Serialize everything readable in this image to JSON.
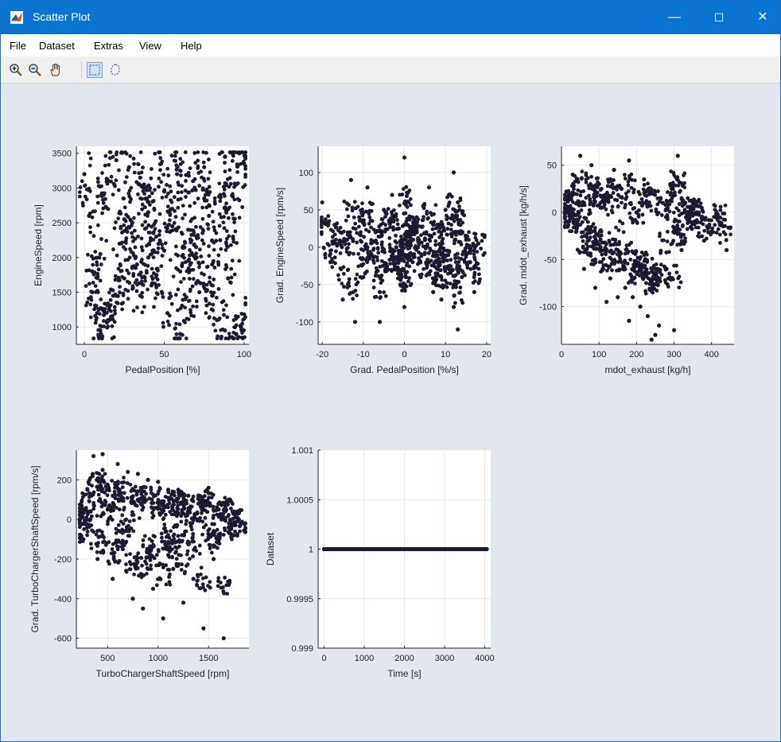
{
  "window": {
    "title": "Scatter Plot",
    "app_icon": "matlab-icon",
    "controls": {
      "minimize": "—",
      "maximize": "☐",
      "close": "✕"
    }
  },
  "menubar": {
    "items": [
      {
        "label": "File"
      },
      {
        "label": "Dataset"
      },
      {
        "label": "Extras"
      },
      {
        "label": "View"
      },
      {
        "label": "Help"
      }
    ]
  },
  "toolbar": {
    "tools": [
      {
        "icon": "zoom-in-icon"
      },
      {
        "icon": "zoom-out-icon"
      },
      {
        "icon": "pan-hand-icon"
      },
      {
        "icon": "rectangle-select-icon",
        "active": true
      },
      {
        "icon": "lasso-select-icon"
      }
    ]
  },
  "colors": {
    "marker": "#1b1a30",
    "figure_bg": "#e1e6ef",
    "axes_bg": "#ffffff",
    "title_bar": "#0b73d0",
    "grid": "#e8e8e8"
  },
  "chart_data": [
    {
      "type": "scatter",
      "xlabel": "PedalPosition [%]",
      "ylabel": "EngineSpeed [rpm]",
      "xlim": [
        -5,
        103
      ],
      "ylim": [
        750,
        3600
      ],
      "xticks": [
        0,
        50,
        100
      ],
      "yticks": [
        1000,
        1500,
        2000,
        2500,
        3000,
        3500
      ],
      "grid": true,
      "x": [
        0,
        3,
        5,
        8,
        10,
        12,
        15,
        18,
        20,
        22,
        25,
        28,
        30,
        33,
        35,
        38,
        40,
        42,
        45,
        48,
        50,
        52,
        55,
        58,
        60,
        63,
        65,
        68,
        70,
        72,
        75,
        78,
        80,
        83,
        85,
        88,
        90,
        93,
        95,
        98,
        100,
        10,
        20,
        30,
        40,
        50,
        60,
        70,
        80,
        90,
        95,
        15,
        25,
        35,
        45,
        55,
        65,
        75,
        85,
        97,
        5,
        40,
        60,
        88
      ],
      "y": [
        3200,
        2600,
        1800,
        1200,
        950,
        2900,
        3100,
        1450,
        3400,
        2200,
        1700,
        3300,
        2500,
        1900,
        1450,
        3000,
        2800,
        1600,
        2300,
        3350,
        2100,
        1200,
        2700,
        3200,
        1800,
        1400,
        2400,
        3100,
        2000,
        1500,
        3300,
        2600,
        1900,
        1100,
        2900,
        3450,
        1700,
        2300,
        3050,
        1000,
        3350,
        2050,
        1450,
        1850,
        2650,
        2950,
        3250,
        2150,
        1450,
        2700,
        900,
        1100,
        2550,
        3150,
        1750,
        2450,
        1950,
        2850,
        2250,
        3500,
        1500,
        2000,
        900,
        950
      ]
    },
    {
      "type": "scatter",
      "xlabel": "Grad. PedalPosition [%/s]",
      "ylabel": "Grad. EngineSpeed [rpm/s]",
      "xlim": [
        -21,
        21
      ],
      "ylim": [
        -130,
        135
      ],
      "xticks": [
        -20,
        -10,
        0,
        10,
        20
      ],
      "yticks": [
        -100,
        -50,
        0,
        50,
        100
      ],
      "grid": true,
      "x": [
        -20,
        -18,
        -17,
        -15,
        -14,
        -12,
        -11,
        -10,
        -9,
        -8,
        -7,
        -6,
        -5,
        -4,
        -3,
        -2,
        -1,
        0,
        0,
        0,
        0,
        1,
        2,
        3,
        4,
        5,
        6,
        7,
        8,
        9,
        10,
        11,
        12,
        12,
        12,
        13,
        14,
        15,
        16,
        17,
        18,
        -13,
        -6,
        0,
        6,
        13,
        2,
        -2,
        -9,
        9
      ],
      "y": [
        60,
        -20,
        30,
        -70,
        10,
        -100,
        40,
        -40,
        80,
        -10,
        20,
        -60,
        50,
        -30,
        70,
        0,
        -50,
        120,
        30,
        -80,
        -10,
        60,
        -20,
        40,
        -40,
        10,
        80,
        -60,
        30,
        -10,
        50,
        -30,
        -80,
        20,
        100,
        60,
        -40,
        10,
        -20,
        -60,
        5,
        90,
        -100,
        10,
        -20,
        -110,
        40,
        -30,
        0,
        -70
      ]
    },
    {
      "type": "scatter",
      "xlabel": "mdot_exhaust [kg/h]",
      "ylabel": "Grad. mdot_exhaust [kg/h/s]",
      "xlim": [
        0,
        460
      ],
      "ylim": [
        -140,
        70
      ],
      "xticks": [
        0,
        100,
        200,
        300,
        400
      ],
      "yticks": [
        -100,
        -50,
        0,
        50
      ],
      "grid": true,
      "x": [
        10,
        15,
        20,
        25,
        30,
        40,
        50,
        60,
        70,
        80,
        90,
        100,
        110,
        120,
        130,
        140,
        150,
        160,
        170,
        180,
        190,
        200,
        210,
        220,
        230,
        240,
        250,
        260,
        270,
        280,
        290,
        300,
        310,
        320,
        330,
        340,
        350,
        360,
        380,
        400,
        420,
        440,
        60,
        120,
        180,
        240,
        300,
        90,
        150,
        210
      ],
      "y": [
        5,
        -10,
        20,
        -5,
        40,
        -20,
        60,
        10,
        -30,
        50,
        -50,
        30,
        -60,
        15,
        -70,
        45,
        -40,
        25,
        -80,
        55,
        -90,
        0,
        -100,
        35,
        -110,
        20,
        -130,
        -120,
        10,
        -60,
        30,
        -20,
        60,
        -40,
        10,
        -10,
        5,
        0,
        -30,
        -20,
        -5,
        -40,
        -60,
        -95,
        -115,
        -135,
        -125,
        -80,
        -90,
        -100
      ]
    },
    {
      "type": "scatter",
      "xlabel": "TurboChargerShaftSpeed [rpm]",
      "ylabel": "Grad. TurboChargerShaftSpeed [rpm/s]",
      "xlim": [
        190,
        1900
      ],
      "ylim": [
        -650,
        350
      ],
      "xticks": [
        500,
        1000,
        1500
      ],
      "yticks": [
        -600,
        -400,
        -200,
        0,
        200
      ],
      "grid": true,
      "x": [
        230,
        260,
        300,
        330,
        360,
        400,
        450,
        500,
        550,
        600,
        650,
        700,
        750,
        800,
        850,
        900,
        950,
        1000,
        1050,
        1100,
        1150,
        1200,
        1250,
        1300,
        1350,
        1400,
        1450,
        1500,
        1550,
        1600,
        1650,
        1700,
        1750,
        1800,
        1820,
        600,
        800,
        1000,
        1200,
        1400,
        1600,
        450,
        700,
        900,
        1100,
        1300,
        1500,
        1700
      ],
      "y": [
        50,
        -100,
        150,
        0,
        320,
        -200,
        250,
        50,
        -300,
        180,
        -150,
        240,
        -400,
        100,
        -450,
        200,
        -350,
        60,
        -500,
        150,
        -250,
        30,
        -420,
        120,
        -300,
        80,
        -550,
        160,
        -200,
        50,
        -600,
        100,
        -80,
        0,
        -20,
        280,
        230,
        190,
        150,
        120,
        80,
        330,
        -50,
        -250,
        -180,
        -120,
        -90,
        -40
      ]
    },
    {
      "type": "scatter",
      "xlabel": "Time [s]",
      "ylabel": "Dataset",
      "xlim": [
        -150,
        4150
      ],
      "ylim": [
        0.999,
        1.001
      ],
      "xticks": [
        0,
        1000,
        2000,
        3000,
        4000
      ],
      "yticks": [
        0.999,
        0.9995,
        1,
        1.0005,
        1.001
      ],
      "ytick_labels": [
        "0.999",
        "0.9995",
        "1",
        "1.0005",
        "1.001"
      ],
      "grid": true,
      "x": [
        0,
        100,
        200,
        300,
        400,
        500,
        600,
        700,
        800,
        900,
        1000,
        1100,
        1200,
        1300,
        1400,
        1500,
        1600,
        1700,
        1800,
        1900,
        2000,
        2100,
        2200,
        2300,
        2400,
        2500,
        2600,
        2700,
        2800,
        2900,
        3000,
        3100,
        3200,
        3300,
        3400,
        3500,
        3600,
        3700,
        3800,
        3900,
        4000,
        4050
      ],
      "y": [
        1,
        1,
        1,
        1,
        1,
        1,
        1,
        1,
        1,
        1,
        1,
        1,
        1,
        1,
        1,
        1,
        1,
        1,
        1,
        1,
        1,
        1,
        1,
        1,
        1,
        1,
        1,
        1,
        1,
        1,
        1,
        1,
        1,
        1,
        1,
        1,
        1,
        1,
        1,
        1,
        1,
        1
      ]
    }
  ]
}
